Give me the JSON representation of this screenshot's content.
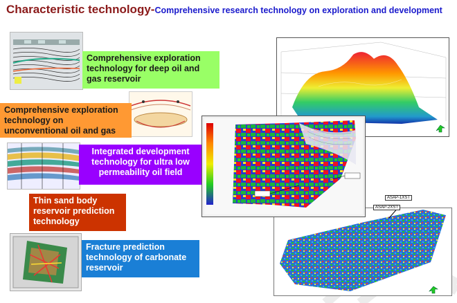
{
  "slide": {
    "title_main": "Characteristic technology-",
    "title_sub": "Comprehensive  research technology on exploration and development"
  },
  "technologies": [
    {
      "label": "Comprehensive exploration technology for deep oil and gas reservoir",
      "color": "#99ff66",
      "text_color": "#1a1a1a"
    },
    {
      "label": "Comprehensive exploration technology on unconventional oil and gas",
      "color": "#ff9933",
      "text_color": "#1a1a1a"
    },
    {
      "label": "Integrated development technology for ultra low permeability oil field",
      "color": "#9900ff",
      "text_color": "#ffffff"
    },
    {
      "label": "Thin sand body reservoir prediction technology",
      "color": "#cc3300",
      "text_color": "#ffffff"
    },
    {
      "label": "Fracture prediction technology of carbonate reservoir",
      "color": "#1a7fd6",
      "text_color": "#ffffff"
    }
  ],
  "map_labels": {
    "well_1": "ASAP-1XST",
    "well_2": "ASAP-2XST"
  }
}
